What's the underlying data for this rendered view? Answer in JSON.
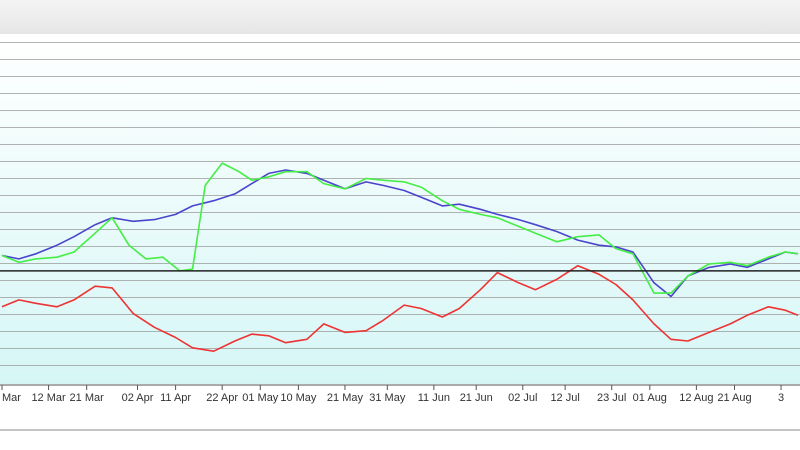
{
  "colors": {
    "background_top": "#ffffff",
    "background_bottom": "#d6f6f6",
    "grid": "#9a9a9a",
    "reference_line": "#202020",
    "series_blue": "#4a45cc",
    "series_green": "#44ee44",
    "series_red": "#ee3333"
  },
  "chart_data": {
    "type": "line",
    "title": "",
    "xlabel": "",
    "ylabel": "",
    "grid": true,
    "legend": "none",
    "x_unit": "day index (0 = 1 Mar)",
    "xlim": [
      0,
      188
    ],
    "ylim": [
      0,
      20
    ],
    "reference_line_y": 6.5,
    "x_ticks": [
      {
        "label": "Mar",
        "x": 0
      },
      {
        "label": "12 Mar",
        "x": 11
      },
      {
        "label": "21 Mar",
        "x": 20
      },
      {
        "label": "02 Apr",
        "x": 32
      },
      {
        "label": "11 Apr",
        "x": 41
      },
      {
        "label": "22 Apr",
        "x": 52
      },
      {
        "label": "01 May",
        "x": 61
      },
      {
        "label": "10 May",
        "x": 70
      },
      {
        "label": "21 May",
        "x": 81
      },
      {
        "label": "31 May",
        "x": 91
      },
      {
        "label": "11 Jun",
        "x": 102
      },
      {
        "label": "21 Jun",
        "x": 112
      },
      {
        "label": "02 Jul",
        "x": 123
      },
      {
        "label": "12 Jul",
        "x": 133
      },
      {
        "label": "23 Jul",
        "x": 144
      },
      {
        "label": "01 Aug",
        "x": 153
      },
      {
        "label": "12 Aug",
        "x": 164
      },
      {
        "label": "21 Aug",
        "x": 173
      },
      {
        "label": "3",
        "x": 184
      }
    ],
    "series": [
      {
        "color_key": "series_blue",
        "x": [
          0,
          4,
          8,
          13,
          17,
          22,
          26,
          31,
          36,
          41,
          45,
          50,
          55,
          59,
          63,
          67,
          72,
          76,
          81,
          86,
          90,
          95,
          99,
          104,
          108,
          113,
          117,
          122,
          126,
          131,
          136,
          141,
          145,
          149,
          154,
          158,
          162,
          167,
          172,
          176,
          181,
          185,
          188
        ],
        "y": [
          7.4,
          7.2,
          7.5,
          8.0,
          8.5,
          9.2,
          9.6,
          9.4,
          9.5,
          9.8,
          10.3,
          10.6,
          11.0,
          11.6,
          12.2,
          12.4,
          12.2,
          11.8,
          11.3,
          11.7,
          11.5,
          11.2,
          10.8,
          10.3,
          10.4,
          10.1,
          9.8,
          9.5,
          9.2,
          8.8,
          8.3,
          8.0,
          7.9,
          7.6,
          5.8,
          5.0,
          6.2,
          6.7,
          6.9,
          6.7,
          7.2,
          7.6,
          7.5
        ]
      },
      {
        "color_key": "series_green",
        "x": [
          0,
          4,
          8,
          13,
          17,
          22,
          26,
          30,
          34,
          38,
          42,
          45,
          48,
          52,
          56,
          59,
          63,
          67,
          72,
          76,
          81,
          86,
          90,
          95,
          99,
          104,
          108,
          113,
          117,
          122,
          126,
          131,
          136,
          141,
          145,
          149,
          154,
          158,
          162,
          167,
          172,
          176,
          181,
          185,
          188
        ],
        "y": [
          7.4,
          7.0,
          7.2,
          7.3,
          7.6,
          8.7,
          9.6,
          8.0,
          7.2,
          7.3,
          6.5,
          6.6,
          11.5,
          12.8,
          12.3,
          11.8,
          12.0,
          12.3,
          12.3,
          11.6,
          11.3,
          11.9,
          11.8,
          11.7,
          11.4,
          10.6,
          10.1,
          9.8,
          9.6,
          9.1,
          8.7,
          8.2,
          8.5,
          8.6,
          7.8,
          7.5,
          5.2,
          5.2,
          6.2,
          6.9,
          7.0,
          6.8,
          7.3,
          7.6,
          7.5
        ]
      },
      {
        "color_key": "series_red",
        "x": [
          0,
          4,
          8,
          13,
          17,
          22,
          26,
          31,
          36,
          41,
          45,
          50,
          55,
          59,
          63,
          67,
          72,
          76,
          81,
          86,
          90,
          95,
          99,
          104,
          108,
          113,
          117,
          122,
          126,
          131,
          136,
          141,
          145,
          149,
          154,
          158,
          162,
          167,
          172,
          176,
          181,
          185,
          188
        ],
        "y": [
          4.4,
          4.8,
          4.6,
          4.4,
          4.8,
          5.6,
          5.5,
          4.0,
          3.2,
          2.6,
          2.0,
          1.8,
          2.4,
          2.8,
          2.7,
          2.3,
          2.5,
          3.4,
          2.9,
          3.0,
          3.6,
          4.5,
          4.3,
          3.8,
          4.3,
          5.4,
          6.4,
          5.8,
          5.4,
          6.0,
          6.8,
          6.3,
          5.7,
          4.8,
          3.4,
          2.5,
          2.4,
          2.9,
          3.4,
          3.9,
          4.4,
          4.2,
          3.9
        ]
      }
    ]
  }
}
